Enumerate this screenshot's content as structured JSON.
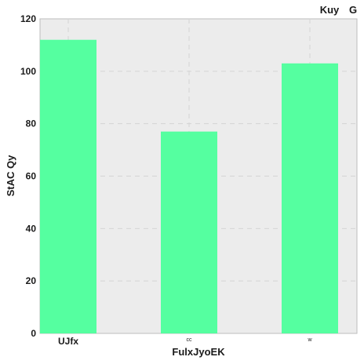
{
  "chart_data": {
    "type": "bar",
    "categories": [
      "UJfx",
      "cc",
      "w"
    ],
    "values": [
      112,
      77,
      103
    ],
    "xlabel": "FulxJyoEK",
    "ylabel": "StAC Qy",
    "ylim": [
      0,
      120
    ],
    "yticks": [
      0,
      20,
      40,
      60,
      80,
      100,
      120
    ],
    "grid": true,
    "bar_color": "#55ffa0",
    "plot_background": "#ececec",
    "top_right_text": "Kuy",
    "top_right_text_2": "G"
  }
}
